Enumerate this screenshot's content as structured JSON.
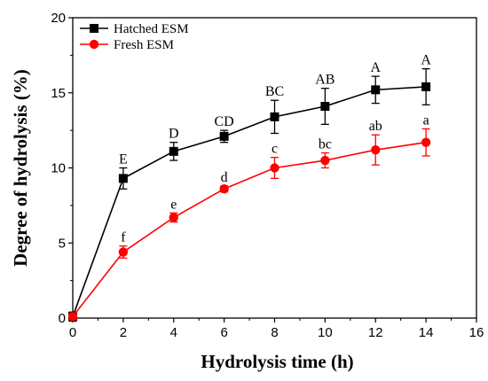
{
  "chart_data": {
    "type": "line",
    "xlabel": "Hydrolysis time (h)",
    "ylabel": "Degree of hydrolysis (%)",
    "xlim": [
      0,
      16
    ],
    "ylim": [
      0,
      20
    ],
    "xticks": [
      0,
      2,
      4,
      6,
      8,
      10,
      12,
      14,
      16
    ],
    "yticks": [
      0,
      5,
      10,
      15,
      20
    ],
    "grid": false,
    "legend_position": "top-left",
    "series": [
      {
        "name": "Hatched ESM",
        "color": "#000000",
        "marker": "square",
        "x": [
          0,
          2,
          4,
          6,
          8,
          10,
          12,
          14
        ],
        "y": [
          0.1,
          9.3,
          11.1,
          12.1,
          13.4,
          14.1,
          15.2,
          15.4
        ],
        "error": [
          0.3,
          0.7,
          0.6,
          0.4,
          1.1,
          1.2,
          0.9,
          1.2
        ],
        "labels": [
          "",
          "E",
          "D",
          "CD",
          "BC",
          "AB",
          "A",
          "A"
        ]
      },
      {
        "name": "Fresh ESM",
        "color": "#ff0000",
        "marker": "circle",
        "x": [
          0,
          2,
          4,
          6,
          8,
          10,
          12,
          14
        ],
        "y": [
          0.1,
          4.4,
          6.7,
          8.6,
          10.0,
          10.5,
          11.2,
          11.7
        ],
        "error": [
          0.2,
          0.4,
          0.3,
          0.2,
          0.7,
          0.5,
          1.0,
          0.9
        ],
        "labels": [
          "",
          "f",
          "e",
          "d",
          "c",
          "bc",
          "ab",
          "a"
        ]
      }
    ]
  }
}
